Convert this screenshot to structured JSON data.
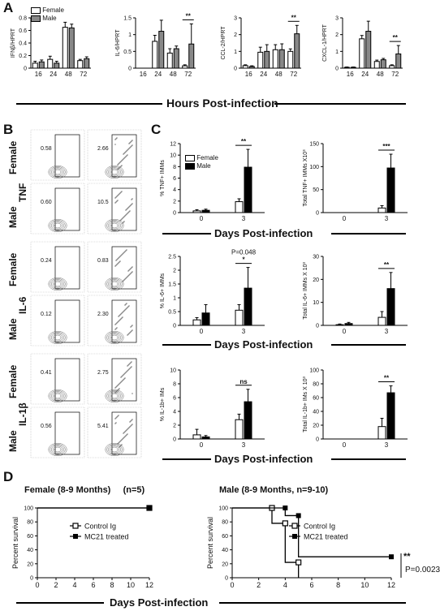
{
  "panels": {
    "a": "A",
    "b": "B",
    "c": "C",
    "d": "D"
  },
  "panelA": {
    "shared_xlabel": "Hours Post-infection",
    "legend": [
      "Female",
      "Male"
    ],
    "tick_labels": [
      "16",
      "24",
      "48",
      "72"
    ]
  },
  "panelB": {
    "row_labels": [
      {
        "sex": "Female",
        "marker": "TNF"
      },
      {
        "sex": "Male",
        "marker": ""
      },
      {
        "sex": "Female",
        "marker": "IL-6"
      },
      {
        "sex": "Male",
        "marker": ""
      },
      {
        "sex": "Female",
        "marker": "IL-1β"
      },
      {
        "sex": "Male",
        "marker": ""
      }
    ],
    "gate_values": [
      [
        "0.58",
        "2.66"
      ],
      [
        "0.60",
        "10.5"
      ],
      [
        "0.24",
        "0.83"
      ],
      [
        "0.12",
        "2.30"
      ],
      [
        "0.41",
        "2.75"
      ],
      [
        "0.56",
        "5.41"
      ]
    ]
  },
  "panelC": {
    "shared_xlabel": "Days Post-infection",
    "legend": [
      "Female",
      "Male"
    ]
  },
  "panelD": {
    "shared_xlabel": "Days Post-infection",
    "female_title": "Female (8-9 Months)     (n=5)",
    "male_title": "Male (8-9 Months, n=9-10)",
    "pvalue": "P=0.0023",
    "sig": "**"
  },
  "chart_data": [
    {
      "id": "A1",
      "type": "bar",
      "categories": [
        "16",
        "24",
        "48",
        "72"
      ],
      "ylabel": "IFNβ/HPRT",
      "ylim": [
        0,
        0.8
      ],
      "yticks": [
        0,
        0.2,
        0.4,
        0.6,
        0.8
      ],
      "series": [
        {
          "name": "Female",
          "values": [
            0.08,
            0.14,
            0.65,
            0.12
          ],
          "err": [
            0.03,
            0.05,
            0.08,
            0.02
          ]
        },
        {
          "name": "Male",
          "values": [
            0.1,
            0.08,
            0.64,
            0.15
          ],
          "err": [
            0.03,
            0.03,
            0.06,
            0.03
          ]
        }
      ],
      "sig": [
        {
          "cat": "",
          "text": ""
        }
      ]
    },
    {
      "id": "A2",
      "type": "bar",
      "categories": [
        "16",
        "24",
        "48",
        "72"
      ],
      "ylabel": "IL-6/HPRT",
      "ylim": [
        0,
        1.5
      ],
      "yticks": [
        0,
        0.5,
        1.0,
        1.5
      ],
      "series": [
        {
          "name": "Female",
          "values": [
            0.0,
            0.8,
            0.45,
            0.07
          ],
          "err": [
            0,
            0.18,
            0.13,
            0.03
          ]
        },
        {
          "name": "Male",
          "values": [
            0.0,
            1.1,
            0.58,
            0.72
          ],
          "err": [
            0,
            0.33,
            0.08,
            0.6
          ]
        }
      ],
      "sig": [
        {
          "cat": "72",
          "text": "**"
        }
      ]
    },
    {
      "id": "A3",
      "type": "bar",
      "categories": [
        "16",
        "24",
        "48",
        "72"
      ],
      "ylabel": "CCL-2/HPRT",
      "ylim": [
        0,
        3
      ],
      "yticks": [
        0,
        1,
        2,
        3
      ],
      "series": [
        {
          "name": "Female",
          "values": [
            0.15,
            0.95,
            1.1,
            1.0
          ],
          "err": [
            0.05,
            0.3,
            0.3,
            0.15
          ]
        },
        {
          "name": "Male",
          "values": [
            0.1,
            1.0,
            1.1,
            2.05
          ],
          "err": [
            0.04,
            0.4,
            0.35,
            0.5
          ]
        }
      ],
      "sig": [
        {
          "cat": "72",
          "text": "**"
        }
      ]
    },
    {
      "id": "A4",
      "type": "bar",
      "categories": [
        "16",
        "24",
        "48",
        "72"
      ],
      "ylabel": "CXCL-1/HPRT",
      "ylim": [
        0,
        3
      ],
      "yticks": [
        0,
        1,
        2,
        3
      ],
      "series": [
        {
          "name": "Female",
          "values": [
            0.05,
            1.75,
            0.4,
            0.15
          ],
          "err": [
            0.02,
            0.2,
            0.08,
            0.05
          ]
        },
        {
          "name": "Male",
          "values": [
            0.05,
            2.2,
            0.5,
            0.85
          ],
          "err": [
            0.02,
            0.6,
            0.08,
            0.5
          ]
        }
      ],
      "sig": [
        {
          "cat": "72",
          "text": "**"
        }
      ]
    },
    {
      "id": "C1",
      "type": "bar",
      "categories": [
        "0",
        "3"
      ],
      "ylabel": "% TNF+ IMMs",
      "ylim": [
        0,
        12
      ],
      "yticks": [
        0,
        2,
        4,
        6,
        8,
        10,
        12
      ],
      "series": [
        {
          "name": "Female",
          "values": [
            0.3,
            1.9
          ],
          "err": [
            0.2,
            0.5
          ]
        },
        {
          "name": "Male",
          "values": [
            0.4,
            7.9
          ],
          "err": [
            0.2,
            3.1
          ]
        }
      ],
      "sig": [
        {
          "cat": "3",
          "text": "**"
        }
      ]
    },
    {
      "id": "C2",
      "type": "bar",
      "categories": [
        "0",
        "3"
      ],
      "ylabel": "Total TNF+ IMMs X10³",
      "ylim": [
        0,
        150
      ],
      "yticks": [
        0,
        50,
        100,
        150
      ],
      "series": [
        {
          "name": "Female",
          "values": [
            0,
            10
          ],
          "err": [
            0,
            5
          ]
        },
        {
          "name": "Male",
          "values": [
            0,
            97
          ],
          "err": [
            0,
            30
          ]
        }
      ],
      "sig": [
        {
          "cat": "3",
          "text": "***"
        }
      ]
    },
    {
      "id": "C3",
      "type": "bar",
      "categories": [
        "0",
        "3"
      ],
      "ylabel": "% IL-6+ IMMs",
      "ylim": [
        0,
        2.5
      ],
      "yticks": [
        0,
        0.5,
        1.0,
        1.5,
        2.0,
        2.5
      ],
      "series": [
        {
          "name": "Female",
          "values": [
            0.2,
            0.55
          ],
          "err": [
            0.08,
            0.2
          ]
        },
        {
          "name": "Male",
          "values": [
            0.45,
            1.35
          ],
          "err": [
            0.3,
            0.75
          ]
        }
      ],
      "sig": [
        {
          "cat": "3",
          "text": "*"
        }
      ],
      "annotation": "P=0.048"
    },
    {
      "id": "C4",
      "type": "bar",
      "categories": [
        "0",
        "3"
      ],
      "ylabel": "Total IL-6+ IMMs X 10³",
      "ylim": [
        0,
        30
      ],
      "yticks": [
        0,
        10,
        20,
        30
      ],
      "series": [
        {
          "name": "Female",
          "values": [
            0.3,
            3.5
          ],
          "err": [
            0.3,
            2.5
          ]
        },
        {
          "name": "Male",
          "values": [
            0.8,
            16
          ],
          "err": [
            0.5,
            7
          ]
        }
      ],
      "sig": [
        {
          "cat": "3",
          "text": "**"
        }
      ]
    },
    {
      "id": "C5",
      "type": "bar",
      "categories": [
        "0",
        "3"
      ],
      "ylabel": "% IL-1b+ IMs",
      "ylim": [
        0,
        10
      ],
      "yticks": [
        0,
        2,
        4,
        6,
        8,
        10
      ],
      "series": [
        {
          "name": "Female",
          "values": [
            0.6,
            2.8
          ],
          "err": [
            0.8,
            0.8
          ]
        },
        {
          "name": "Male",
          "values": [
            0.3,
            5.4
          ],
          "err": [
            0.2,
            1.8
          ]
        }
      ],
      "sig": [
        {
          "cat": "3",
          "text": "ns"
        }
      ]
    },
    {
      "id": "C6",
      "type": "bar",
      "categories": [
        "0",
        "3"
      ],
      "ylabel": "Total IL-1b+ IMs X 10³",
      "ylim": [
        0,
        100
      ],
      "yticks": [
        0,
        20,
        40,
        60,
        80,
        100
      ],
      "series": [
        {
          "name": "Female",
          "values": [
            0,
            18
          ],
          "err": [
            0,
            12
          ]
        },
        {
          "name": "Male",
          "values": [
            0,
            67
          ],
          "err": [
            0,
            10
          ]
        }
      ],
      "sig": [
        {
          "cat": "3",
          "text": "**"
        }
      ]
    },
    {
      "id": "D1",
      "type": "line",
      "xlim": [
        0,
        12
      ],
      "xticks": [
        0,
        2,
        4,
        6,
        8,
        10,
        12
      ],
      "ylabel": "Percent survival",
      "ylim": [
        0,
        100
      ],
      "yticks": [
        0,
        20,
        40,
        60,
        80,
        100
      ],
      "series": [
        {
          "name": "Control Ig",
          "points": [
            [
              0,
              100
            ],
            [
              12,
              100
            ]
          ]
        },
        {
          "name": "MC21 treated",
          "points": [
            [
              0,
              100
            ],
            [
              12,
              100
            ]
          ]
        }
      ]
    },
    {
      "id": "D2",
      "type": "line",
      "xlim": [
        0,
        12
      ],
      "xticks": [
        0,
        2,
        4,
        6,
        8,
        10,
        12
      ],
      "ylabel": "Percent survival",
      "ylim": [
        0,
        100
      ],
      "yticks": [
        0,
        20,
        40,
        60,
        80,
        100
      ],
      "series": [
        {
          "name": "Control Ig",
          "points": [
            [
              0,
              100
            ],
            [
              3,
              100
            ],
            [
              3,
              78
            ],
            [
              4,
              78
            ],
            [
              4,
              22
            ],
            [
              5,
              22
            ],
            [
              5,
              0
            ]
          ]
        },
        {
          "name": "MC21 treated",
          "points": [
            [
              0,
              100
            ],
            [
              4,
              100
            ],
            [
              4,
              89
            ],
            [
              5,
              89
            ],
            [
              5,
              30
            ],
            [
              12,
              30
            ]
          ]
        }
      ]
    }
  ]
}
